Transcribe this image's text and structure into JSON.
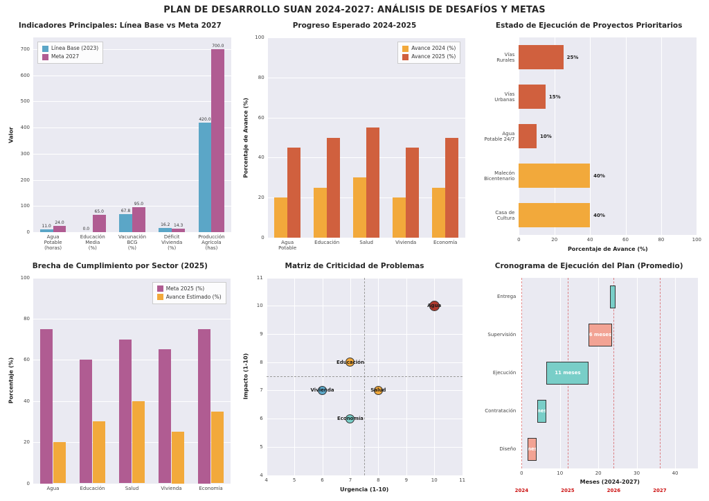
{
  "page_title": "PLAN DE DESARROLLO SUAN 2024-2027: ANÁLISIS DE DESAFÍOS Y METAS",
  "colors": {
    "blue": "#5BA6C7",
    "purple": "#B05C92",
    "orange": "#F2A93B",
    "red_orange": "#D0603E",
    "teal": "#79CEC8",
    "salmon": "#F2A394",
    "red_point": "#B03A2E",
    "year_red": "#CC1111",
    "plot_bg": "#EAEAF2"
  },
  "chart_data": [
    {
      "type": "bar",
      "title": "Indicadores Principales: Línea Base vs Meta 2027",
      "ylabel": "Valor",
      "ylim": [
        0,
        745
      ],
      "yticks": [
        0,
        100,
        200,
        300,
        400,
        500,
        600,
        700
      ],
      "categories": [
        "Agua\nPotable\n(horas)",
        "Educación\nMedia\n(%)",
        "Vacunación\nBCG\n(%)",
        "Déficit\nVivienda\n(%)",
        "Producción\nAgrícola\n(has)"
      ],
      "series": [
        {
          "name": "Línea Base (2023)",
          "color": "blue",
          "values": [
            11.0,
            0.0,
            67.8,
            16.2,
            420.0
          ]
        },
        {
          "name": "Meta 2027",
          "color": "purple",
          "values": [
            24.0,
            65.0,
            95.0,
            14.3,
            700.0
          ]
        }
      ],
      "value_labels": true,
      "legend_position": "top-left"
    },
    {
      "type": "bar",
      "title": "Progreso Esperado 2024-2025",
      "ylabel": "Porcentaje de Avance (%)",
      "ylim": [
        0,
        100
      ],
      "yticks": [
        0,
        20,
        40,
        60,
        80,
        100
      ],
      "categories": [
        "Agua\nPotable",
        "Educación",
        "Salud",
        "Vivienda",
        "Economía"
      ],
      "series": [
        {
          "name": "Avance 2024 (%)",
          "color": "orange",
          "values": [
            20,
            25,
            30,
            20,
            25
          ]
        },
        {
          "name": "Avance 2025 (%)",
          "color": "red_orange",
          "values": [
            45,
            50,
            55,
            45,
            50
          ]
        }
      ],
      "value_labels": false,
      "legend_position": "top-right"
    },
    {
      "type": "barh",
      "title": "Estado de Ejecución de Proyectos Prioritarios",
      "xlabel": "Porcentaje de Avance (%)",
      "xlim": [
        0,
        100
      ],
      "xticks": [
        0,
        20,
        40,
        60,
        80,
        100
      ],
      "categories": [
        "Vías\nRurales",
        "Vías\nUrbanas",
        "Agua\nPotable 24/7",
        "Malecón\nBicentenario",
        "Casa de\nCultura"
      ],
      "values": [
        25,
        15,
        10,
        40,
        40
      ],
      "labels": [
        "25%",
        "15%",
        "10%",
        "40%",
        "40%"
      ],
      "bar_colors": [
        "red_orange",
        "red_orange",
        "red_orange",
        "orange",
        "orange"
      ]
    },
    {
      "type": "bar",
      "title": "Brecha de Cumplimiento por Sector (2025)",
      "ylabel": "Porcentaje (%)",
      "ylim": [
        0,
        100
      ],
      "yticks": [
        0,
        20,
        40,
        60,
        80,
        100
      ],
      "categories": [
        "Agua",
        "Educación",
        "Salud",
        "Vivienda",
        "Economía"
      ],
      "series": [
        {
          "name": "Meta 2025 (%)",
          "color": "purple",
          "values": [
            75,
            60,
            70,
            65,
            75
          ]
        },
        {
          "name": "Avance Estimado (%)",
          "color": "orange",
          "values": [
            20,
            30,
            40,
            25,
            35
          ]
        }
      ],
      "value_labels": false,
      "legend_position": "top-right"
    },
    {
      "type": "scatter",
      "title": "Matriz de Criticidad de Problemas",
      "xlabel": "Urgencia (1-10)",
      "ylabel": "Impacto (1-10)",
      "xlim": [
        4,
        11
      ],
      "ylim": [
        4,
        11
      ],
      "xticks": [
        4,
        5,
        6,
        7,
        8,
        9,
        10,
        11
      ],
      "yticks": [
        4,
        5,
        6,
        7,
        8,
        9,
        10,
        11
      ],
      "ref_x": 7.5,
      "ref_y": 7.5,
      "points": [
        {
          "label": "Agua",
          "x": 10,
          "y": 10,
          "color": "red_point",
          "size": 15
        },
        {
          "label": "Educación",
          "x": 7,
          "y": 8,
          "color": "orange",
          "size": 13
        },
        {
          "label": "Vivienda",
          "x": 6,
          "y": 7,
          "color": "blue",
          "size": 13
        },
        {
          "label": "Salud",
          "x": 8,
          "y": 7,
          "color": "orange",
          "size": 13
        },
        {
          "label": "Economía",
          "x": 7,
          "y": 6,
          "color": "teal",
          "size": 13
        }
      ]
    },
    {
      "type": "gantt",
      "title": "Cronograma de Ejecución del Plan (Promedio)",
      "xlabel": "Meses (2024-2027)",
      "xlim": [
        0,
        46
      ],
      "xticks": [
        0,
        10,
        20,
        30,
        40
      ],
      "tasks": [
        {
          "name": "Entrega",
          "start": 23,
          "duration": 1.5,
          "color": "teal",
          "label": ""
        },
        {
          "name": "Supervisión",
          "start": 17.5,
          "duration": 6,
          "color": "salmon",
          "label": "6 meses"
        },
        {
          "name": "Ejecución",
          "start": 6.5,
          "duration": 11,
          "color": "teal",
          "label": "11 meses"
        },
        {
          "name": "Contratación",
          "start": 4,
          "duration": 2.5,
          "color": "teal",
          "label": "2 meses"
        },
        {
          "name": "Diseño",
          "start": 1.5,
          "duration": 2.5,
          "color": "salmon",
          "label": "2 meses"
        }
      ],
      "years": [
        {
          "x": 0,
          "label": "2024"
        },
        {
          "x": 12,
          "label": "2025"
        },
        {
          "x": 24,
          "label": "2026"
        },
        {
          "x": 36,
          "label": "2027"
        }
      ]
    }
  ]
}
